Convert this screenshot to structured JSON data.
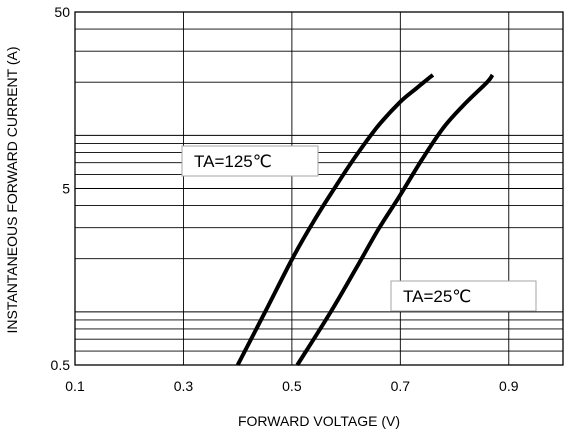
{
  "chart_data": {
    "type": "line",
    "title": "",
    "xlabel": "FORWARD VOLTAGE (V)",
    "ylabel": "INSTANTANEOUS FORWARD CURRENT (A)",
    "xlim": [
      0.1,
      1.0
    ],
    "ylim": [
      0.5,
      50
    ],
    "yscale": "log",
    "grid": true,
    "x_ticks": [
      {
        "value": 0.1,
        "label": "0.1"
      },
      {
        "value": 0.3,
        "label": "0.3"
      },
      {
        "value": 0.5,
        "label": "0.5"
      },
      {
        "value": 0.7,
        "label": "0.7"
      },
      {
        "value": 0.9,
        "label": "0.9"
      }
    ],
    "y_ticks": [
      {
        "value": 0.5,
        "label": "0.5"
      },
      {
        "value": 5,
        "label": "5"
      },
      {
        "value": 50,
        "label": "50"
      }
    ],
    "series": [
      {
        "points": [
          [
            0.4,
            0.5
          ],
          [
            0.45,
            0.99
          ],
          [
            0.5,
            1.98
          ],
          [
            0.54,
            3.25
          ],
          [
            0.58,
            5.1
          ],
          [
            0.62,
            7.8
          ],
          [
            0.66,
            11.4
          ],
          [
            0.7,
            15.5
          ],
          [
            0.73,
            18.5
          ],
          [
            0.76,
            22
          ]
        ]
      },
      {
        "points": [
          [
            0.51,
            0.5
          ],
          [
            0.57,
            0.98
          ],
          [
            0.62,
            1.8
          ],
          [
            0.66,
            2.95
          ],
          [
            0.7,
            4.6
          ],
          [
            0.74,
            7.3
          ],
          [
            0.78,
            11.1
          ],
          [
            0.82,
            15.2
          ],
          [
            0.86,
            20
          ],
          [
            0.87,
            22
          ]
        ]
      }
    ],
    "annotations": [
      {
        "text": "TA=125℃"
      },
      {
        "text": "TA=25℃"
      }
    ]
  }
}
